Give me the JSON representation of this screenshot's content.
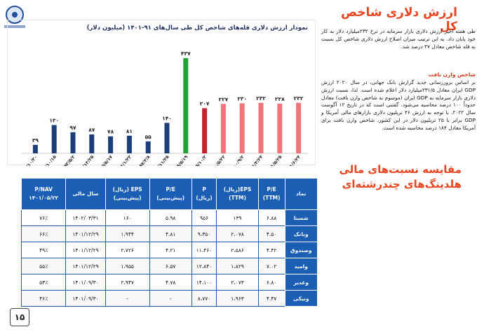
{
  "page_number": "۱۵",
  "main_title": "ارزش دلاری شاخص کل",
  "para1": "طی هفته اخیر ارزش دلاری بازار سرمایه در نرخ ۲۳۲میلیارد دلار به کار خود پایان داد. به این ترتیب میزان اصلاح ارزش دلاری شاخص کل نسبت به قله شاخص معادل ۴۷ درصد شد.",
  "sub_title": "شاخص وارن بافت",
  "para2": "بر اساس برورزسانی جدید گزارش بانک جهانی، در سال ۲۰۲۰ ارزش GDP ایران معادل ۲۳۱/۵میلیارد دلار اعلام شده است. لذا، نسبت ارزش دلاری بازار سرمایه به GDP ایران (موسوم به شاخص وارن بافت) معادل حدوداً ۱۰۰ درصد محاسبه می‌شود. گفتنی است که در تاریخ ۱۲ آگوست سال ۲۰۲۲، با توجه به ارزش ۴۶ تریلیون دلاری بازارهای مالی آمریکا و GDP برابر با ۲۵ تریلیون دلار در این کشور، شاخص وارن بافت برای آمریکا معادل ۱۸۴ درصد محاسبه شده است.",
  "section_title": "مقایسه نسبت‌های مالی هلدینگ‌های چندرشته‌ای",
  "colors": {
    "navy": "#1c3f7a",
    "green": "#22a036",
    "red_dark": "#c4232d",
    "red_light": "#f0747a",
    "accent": "#e8451e",
    "table_blue": "#1b5fb4"
  },
  "chart_data": {
    "type": "bar",
    "title": "نمودار ارزش دلاری قله‌های شاخص کل طی سال‌های ۹۱-۱۴۰۱ (میلیون دلار)",
    "categories": [
      "۹۱/۱۰/۳۰",
      "۹۲/۱۰/۱۵",
      "۹۳/۵/۲",
      "۹۴/۱۲/۲۵",
      "۹۵/۵/۱۷",
      "۹۶/۱/۲۲",
      "۹۷/۳/۸",
      "۹۸/۱۱/۲۵",
      "۹۹/۵/۱۹",
      "۹۹/۱۰/۲",
      "۱۴۰۰/۵/۲۲",
      "۱۴۰۰/۹/۲",
      "۱۴۰۱/۳/۲۴",
      "۱۴۰۱/۵/۲۵",
      "۱۴۰۱/۶/۲۴"
    ],
    "values": [
      39,
      130,
      97,
      87,
      78,
      81,
      55,
      140,
      437,
      207,
      227,
      230,
      232,
      228,
      232
    ],
    "value_labels": [
      "۳۹",
      "۱۳۰",
      "۹۷",
      "۸۷",
      "۷۸",
      "۸۱",
      "۵۵",
      "۱۴۰",
      "۴۳۷",
      "۲۰۷",
      "۲۲۷",
      "۲۳۰",
      "۲۳۲",
      "۲۲۸",
      "۲۳۲"
    ],
    "bar_colors": [
      "navy",
      "navy",
      "navy",
      "navy",
      "navy",
      "navy",
      "navy",
      "navy",
      "green",
      "red_dark",
      "red_light",
      "red_light",
      "red_light",
      "red_light",
      "red_light"
    ],
    "ylim": [
      0,
      450
    ],
    "grid": false
  },
  "table": {
    "headers": [
      "نماد",
      "P/E\n(TTM)",
      "EPS(ریال)\n(TTM)",
      "P\n(ریال)",
      "P/E\n(پیش‌بینی)",
      "EPS (ریال)\n(پیش‌بینی)",
      "سال مالی",
      "P/NAV\n۱۴۰۱/۰۵/۲۲"
    ],
    "rows": [
      [
        "شستا",
        "۶.۸۸",
        "۱۳۹",
        "۹۵۶",
        "۵.۹۸",
        "۱۶۰",
        "۱۴۰۲/۰۳/۳۱",
        "۷۶٪"
      ],
      [
        "وبانک",
        "۴.۵۰",
        "۲،۰۷۸",
        "۹،۳۵۰",
        "۴.۸۱",
        "۱،۹۴۴",
        "۱۴۰۱/۱۲/۲۹",
        "۶۶٪"
      ],
      [
        "وصندوق",
        "۴.۴۲",
        "۲،۵۸۶",
        "۱۱،۴۶۰",
        "۴.۲۱",
        "۲،۷۲۶",
        "۱۴۰۱/۱۲/۲۹",
        "۴۹٪"
      ],
      [
        "وامید",
        "۷.۰۲",
        "۱،۸۲۹",
        "۱۲،۸۴۰",
        "۶.۵۷",
        "۱،۹۵۵",
        "۱۴۰۱/۱۲/۲۹",
        "۵۵٪"
      ],
      [
        "وغدیر",
        "۶.۸۰",
        "۲،۰۷۳",
        "۱۴،۱۰۰",
        "۴.۷۸",
        "۲،۹۴۷",
        "۱۴۰۱/۰۹/۳۰",
        "۵۳٪"
      ],
      [
        "ونیکی",
        "۴.۴۷",
        "۱،۹۶۳",
        "۸،۷۷۰",
        "-",
        "-",
        "۱۴۰۱/۰۹/۳۰",
        "۴۶٪"
      ]
    ]
  }
}
